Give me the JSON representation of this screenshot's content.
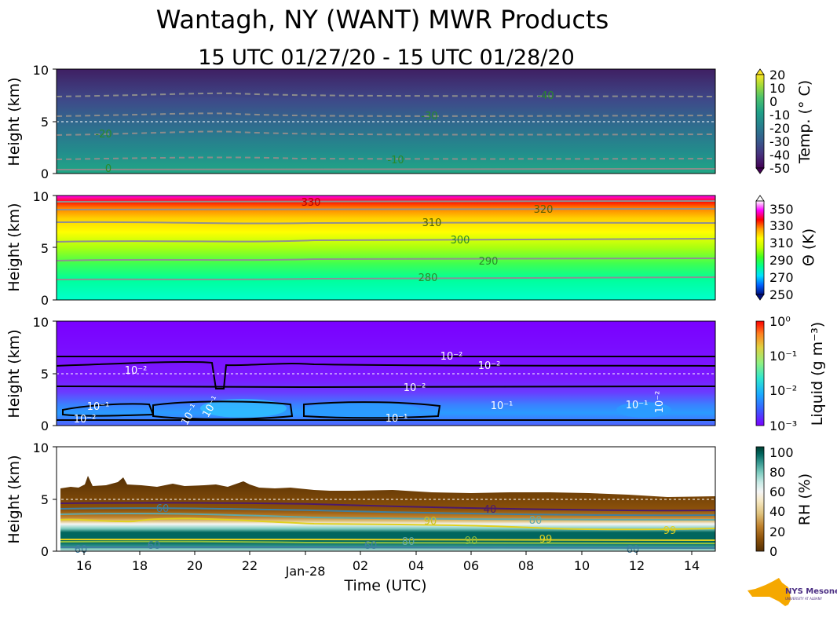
{
  "figure": {
    "title": "Wantagh, NY (WANT) MWR Products",
    "subtitle": "15 UTC 01/27/20 - 15 UTC 01/28/20",
    "xlabel": "Time (UTC)",
    "ylabel": "Height (km)",
    "logo_text": "NYS Mesonet",
    "logo_subtext": "UNIVERSITY AT ALBANY"
  },
  "colors": {
    "temp_cmap": [
      "#3d1a5b",
      "#453a83",
      "#38588c",
      "#2b748d",
      "#218f8b",
      "#28a87f",
      "#55c466",
      "#98d83e",
      "#dde318",
      "#fde725"
    ],
    "theta_cmap": [
      "#0010ff",
      "#00a0ff",
      "#00ffd0",
      "#00ff80",
      "#60ff20",
      "#c8ff00",
      "#ffff00",
      "#ffc000",
      "#ff6000",
      "#ff0000",
      "#ff00ff"
    ],
    "liquid_cmap": [
      "#7a1bff",
      "#4f4bff",
      "#2c8cff",
      "#21c8e6",
      "#3fe8b0",
      "#8ff37a",
      "#d8e645",
      "#ffae2a",
      "#ff5a1a",
      "#ff1000"
    ],
    "rh_cmap": [
      "#543005",
      "#8c510a",
      "#bf812d",
      "#dfc27d",
      "#f6e8c3",
      "#f5f5f5",
      "#c7eae5",
      "#80cdc1",
      "#35978f",
      "#01665e",
      "#003c30"
    ]
  },
  "chart_data": [
    {
      "type": "heatmap",
      "name": "temperature",
      "ylim": [
        0,
        10
      ],
      "yticks": [
        "0",
        "5",
        "10"
      ],
      "xticks": [
        "16",
        "18",
        "20",
        "22",
        "Jan-28",
        "02",
        "04",
        "06",
        "08",
        "10",
        "12",
        "14"
      ],
      "colorbar": {
        "label": "Temp. (° C)",
        "ticks": [
          "20",
          "10",
          "0",
          "-10",
          "-20",
          "-30",
          "-40",
          "-50"
        ],
        "range": [
          -50,
          20
        ]
      },
      "contour_labels": [
        "0",
        "-10",
        "-20",
        "-30",
        "-40"
      ]
    },
    {
      "type": "heatmap",
      "name": "potential_temperature",
      "ylim": [
        0,
        10
      ],
      "yticks": [
        "0",
        "5",
        "10"
      ],
      "colorbar": {
        "label": "Θ (K)",
        "ticks": [
          "350",
          "330",
          "310",
          "290",
          "270",
          "250"
        ],
        "range": [
          250,
          360
        ]
      },
      "contour_labels": [
        "280",
        "290",
        "300",
        "310",
        "320",
        "330"
      ]
    },
    {
      "type": "heatmap",
      "name": "liquid",
      "ylim": [
        0,
        10
      ],
      "yticks": [
        "0",
        "5",
        "10"
      ],
      "colorbar": {
        "label": "Liquid (g m⁻³)",
        "ticks": [
          "10⁰",
          "10⁻¹",
          "10⁻²",
          "10⁻³"
        ],
        "scale": "log"
      },
      "contour_labels": [
        "10⁻²",
        "10⁻¹"
      ]
    },
    {
      "type": "heatmap",
      "name": "relative_humidity",
      "ylim": [
        0,
        10
      ],
      "yticks": [
        "0",
        "5",
        "10"
      ],
      "colorbar": {
        "label": "RH (%)",
        "ticks": [
          "100",
          "80",
          "60",
          "40",
          "20",
          "0"
        ],
        "range": [
          0,
          105
        ]
      },
      "contour_labels": [
        "40",
        "60",
        "80",
        "90",
        "99"
      ]
    }
  ]
}
